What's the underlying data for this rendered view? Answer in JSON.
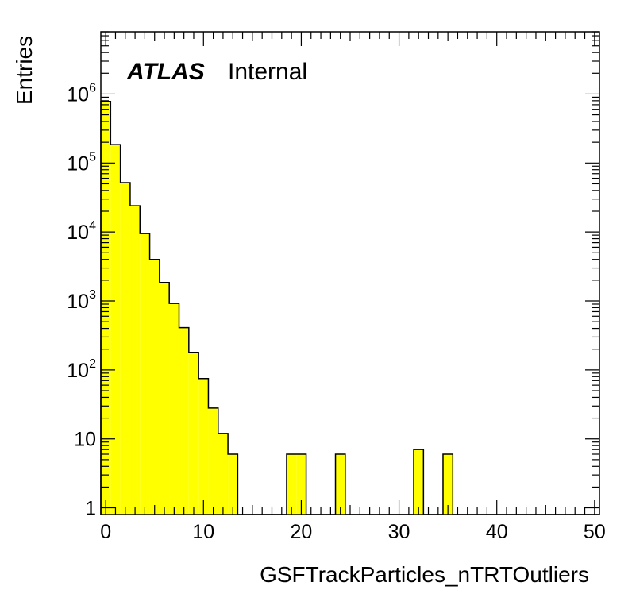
{
  "chart_data": {
    "type": "bar",
    "style": "histogram",
    "label_main": "ATLAS",
    "label_sub": "Internal",
    "xlabel": "GSFTrackParticles_nTRTOutliers",
    "ylabel": "Entries",
    "xlim": [
      -0.5,
      50.5
    ],
    "ylim": [
      0.8,
      8000000
    ],
    "yscale": "log",
    "grid": false,
    "fill_color": "#ffff00",
    "line_color": "#000000",
    "x_ticks": [
      "0",
      "10",
      "20",
      "30",
      "40",
      "50"
    ],
    "y_ticks": [
      {
        "value": 1,
        "base": "1",
        "exp": ""
      },
      {
        "value": 10,
        "base": "10",
        "exp": ""
      },
      {
        "value": 100,
        "base": "10",
        "exp": "2"
      },
      {
        "value": 1000,
        "base": "10",
        "exp": "3"
      },
      {
        "value": 10000,
        "base": "10",
        "exp": "4"
      },
      {
        "value": 100000,
        "base": "10",
        "exp": "5"
      },
      {
        "value": 1000000,
        "base": "10",
        "exp": "6"
      }
    ],
    "bin_edges": [
      -0.5,
      0.5,
      1.5,
      2.5,
      3.5,
      4.5,
      5.5,
      6.5,
      7.5,
      8.5,
      9.5,
      10.5,
      11.5,
      12.5,
      13.5,
      14.5,
      15.5,
      16.5,
      17.5,
      18.5,
      19.5,
      20.5,
      21.5,
      22.5,
      23.5,
      24.5,
      25.5,
      26.5,
      27.5,
      28.5,
      29.5,
      30.5,
      31.5,
      32.5,
      33.5,
      34.5,
      35.5,
      36.5,
      37.5,
      38.5,
      39.5,
      40.5,
      41.5,
      42.5,
      43.5,
      44.5,
      45.5,
      46.5,
      47.5,
      48.5,
      49.5,
      50.5
    ],
    "values": [
      780000,
      185000,
      52000,
      24000,
      9500,
      4000,
      1850,
      920,
      410,
      180,
      75,
      28,
      12,
      6,
      0,
      0,
      0,
      0,
      0,
      6,
      6,
      0,
      0,
      0,
      6,
      0,
      0,
      0,
      0,
      0,
      0,
      0,
      7,
      0,
      0,
      6,
      0,
      0,
      0,
      0,
      0,
      0,
      0,
      0,
      0,
      0,
      0,
      0,
      0,
      0,
      0
    ]
  }
}
